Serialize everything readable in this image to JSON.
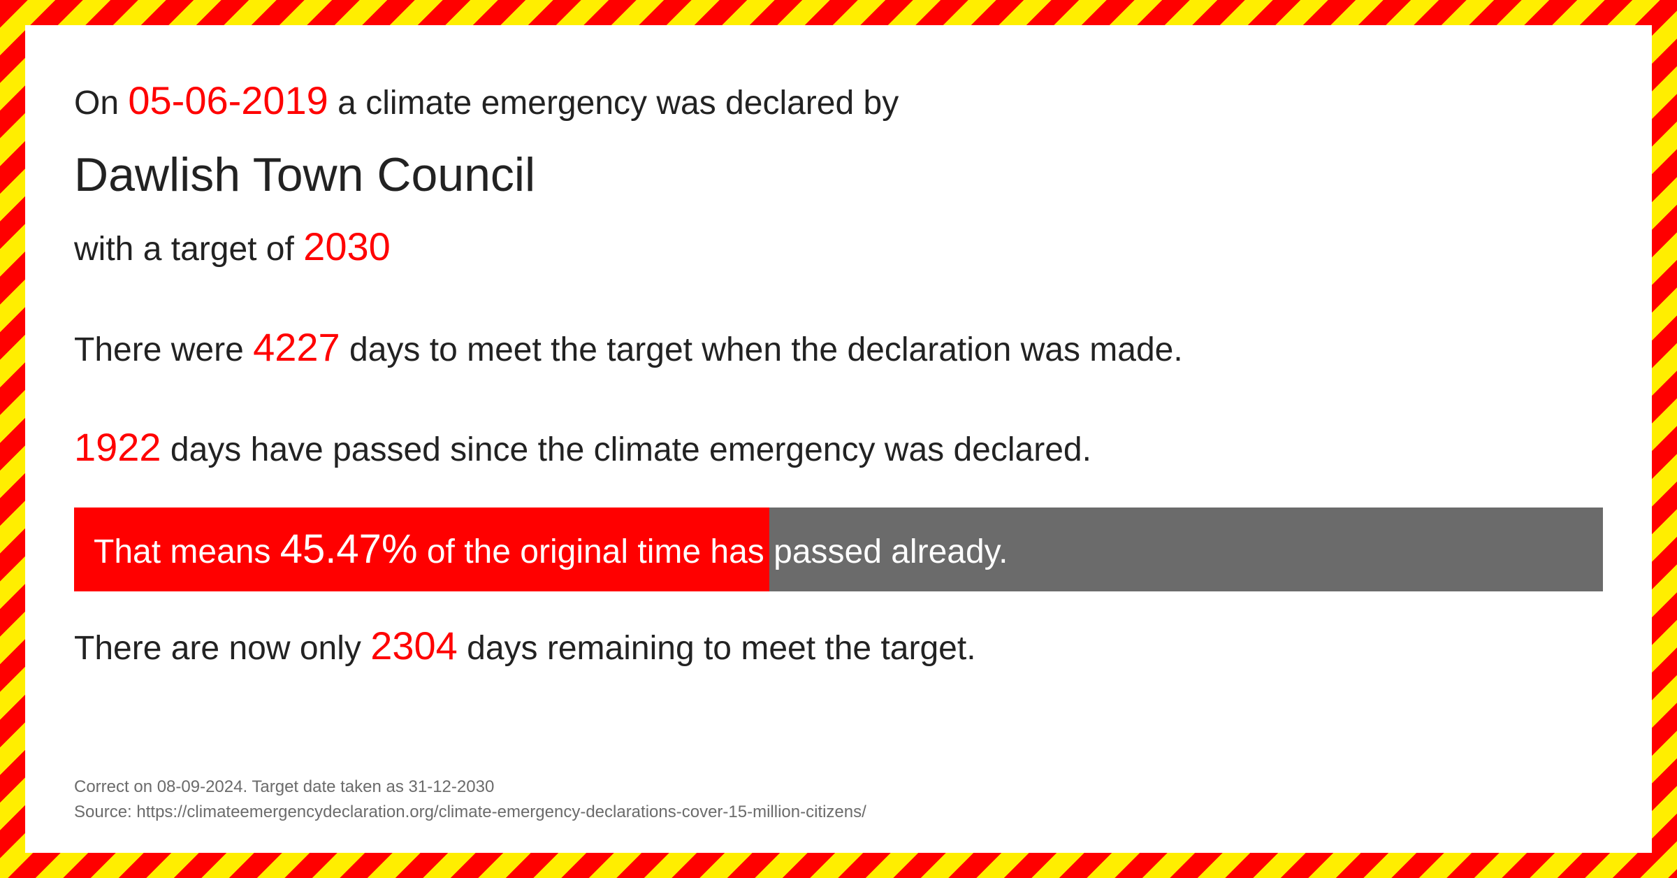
{
  "colors": {
    "highlight": "#ff0000",
    "text": "#222222",
    "bar_bg": "#6b6b6b",
    "bar_fill": "#ff0000",
    "footer": "#6b6b6b",
    "stripe_red": "#ff0000",
    "stripe_yellow": "#ffee00",
    "page_bg": "#ffffff"
  },
  "header": {
    "prefix": "On ",
    "date": "05-06-2019",
    "suffix": " a climate emergency was declared by"
  },
  "council": "Dawlish Town Council",
  "target_line": {
    "prefix": "with a target of  ",
    "year": "2030"
  },
  "days_total_line": {
    "prefix": "There were ",
    "days": "4227",
    "suffix": "  days to meet the target when the declaration was made."
  },
  "days_passed_line": {
    "days": "1922",
    "suffix": " days have passed since the climate emergency was declared."
  },
  "progress": {
    "percent_value": 45.47,
    "prefix": "That means ",
    "percent": "45.47%",
    "suffix": " of the original time has passed already."
  },
  "days_remaining_line": {
    "prefix": "There are now only ",
    "days": "2304",
    "suffix": " days remaining to meet the target."
  },
  "footer": {
    "line1": "Correct on 08-09-2024. Target date taken as 31-12-2030",
    "line2": "Source: https://climateemergencydeclaration.org/climate-emergency-declarations-cover-15-million-citizens/"
  }
}
